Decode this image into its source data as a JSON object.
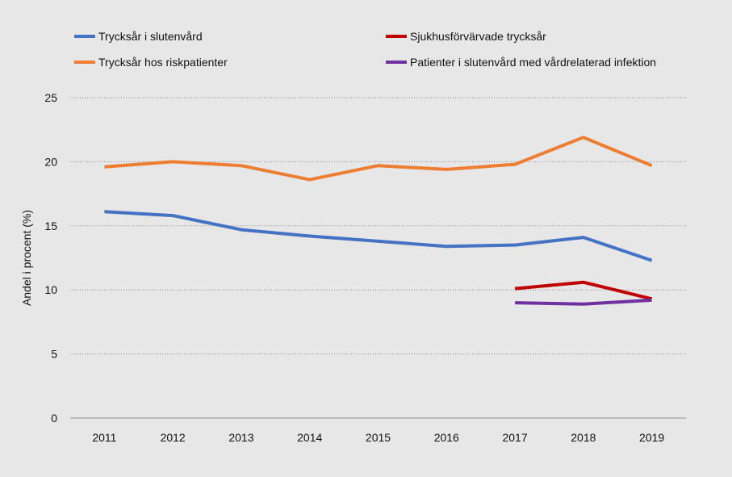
{
  "chart_data": {
    "type": "line",
    "title": "",
    "xlabel": "",
    "ylabel": "Andel i procent (%)",
    "ylim": [
      0,
      25
    ],
    "yticks": [
      0,
      5,
      10,
      15,
      20,
      25
    ],
    "grid": "horizontal-dotted",
    "legend_position": "top",
    "categories": [
      "2011",
      "2012",
      "2013",
      "2014",
      "2015",
      "2016",
      "2017",
      "2018",
      "2019"
    ],
    "series": [
      {
        "name": "Trycksår i slutenvård",
        "color": "#4472c4",
        "values": [
          16.1,
          15.8,
          14.7,
          14.2,
          13.8,
          13.4,
          13.5,
          14.1,
          12.3
        ]
      },
      {
        "name": "Sjukhusförvärvade trycksår",
        "color": "#c00000",
        "values": [
          null,
          null,
          null,
          null,
          null,
          null,
          10.1,
          10.6,
          9.3
        ]
      },
      {
        "name": "Trycksår hos riskpatienter",
        "color": "#ed7d31",
        "values": [
          19.6,
          20.0,
          19.7,
          18.6,
          19.7,
          19.4,
          19.8,
          21.9,
          19.7
        ]
      },
      {
        "name": "Patienter i slutenvård med vårdrelaterad infektion",
        "color": "#7030a0",
        "values": [
          null,
          null,
          null,
          null,
          null,
          null,
          9.0,
          8.9,
          9.2
        ]
      }
    ]
  }
}
